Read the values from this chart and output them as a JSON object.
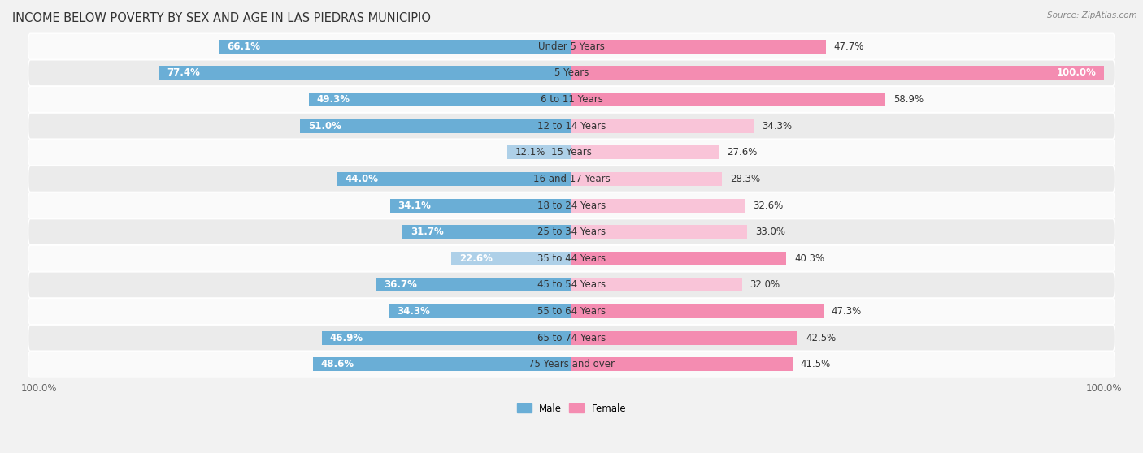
{
  "title": "INCOME BELOW POVERTY BY SEX AND AGE IN LAS PIEDRAS MUNICIPIO",
  "source": "Source: ZipAtlas.com",
  "categories": [
    "Under 5 Years",
    "5 Years",
    "6 to 11 Years",
    "12 to 14 Years",
    "15 Years",
    "16 and 17 Years",
    "18 to 24 Years",
    "25 to 34 Years",
    "35 to 44 Years",
    "45 to 54 Years",
    "55 to 64 Years",
    "65 to 74 Years",
    "75 Years and over"
  ],
  "male_values": [
    66.1,
    77.4,
    49.3,
    51.0,
    12.1,
    44.0,
    34.1,
    31.7,
    22.6,
    36.7,
    34.3,
    46.9,
    48.6
  ],
  "female_values": [
    47.7,
    100.0,
    58.9,
    34.3,
    27.6,
    28.3,
    32.6,
    33.0,
    40.3,
    32.0,
    47.3,
    42.5,
    41.5
  ],
  "male_color": "#6aaed6",
  "female_color": "#f48cb1",
  "male_color_light": "#aed0e8",
  "female_color_light": "#f9c4d8",
  "male_label": "Male",
  "female_label": "Female",
  "bg_color": "#f2f2f2",
  "row_bg_light": "#fafafa",
  "row_bg_dark": "#ebebeb",
  "max_value": 100.0,
  "bar_height": 0.52,
  "title_fontsize": 10.5,
  "label_fontsize": 8.5,
  "tick_fontsize": 8.5,
  "inside_label_threshold": 20
}
